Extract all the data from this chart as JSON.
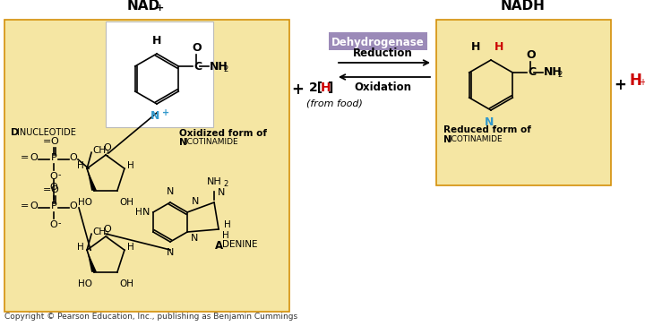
{
  "bg_color": "#ffffff",
  "yellow_bg": "#f5e6a3",
  "title_nad": "NAD",
  "title_nad_super": "+",
  "title_nadh": "NADH",
  "enzyme_label": "Dehydrogenase",
  "enzyme_bg": "#9b8ab8",
  "reduction_label": "Reduction",
  "oxidation_label": "Oxidation",
  "h_color_red": "#cc0000",
  "n_color_blue": "#3399cc",
  "hplus_color": "#cc0000",
  "text_color": "#000000",
  "border_color": "#d4900a",
  "footnote": "Copyright © Pearson Education, Inc., publishing as Benjamin Cummings",
  "dinucleotide_D": "D",
  "dinucleotide_rest": "INUCLEOTIDE",
  "oxidized_form1": "Oxidized form of",
  "oxidized_N": "N",
  "oxidized_rest": "ICOTINAMIDE",
  "reduced_form1": "Reduced form of",
  "reduced_N": "N",
  "reduced_rest": "ICOTINAMIDE",
  "adenine_A": "A",
  "adenine_rest": "DENINE"
}
